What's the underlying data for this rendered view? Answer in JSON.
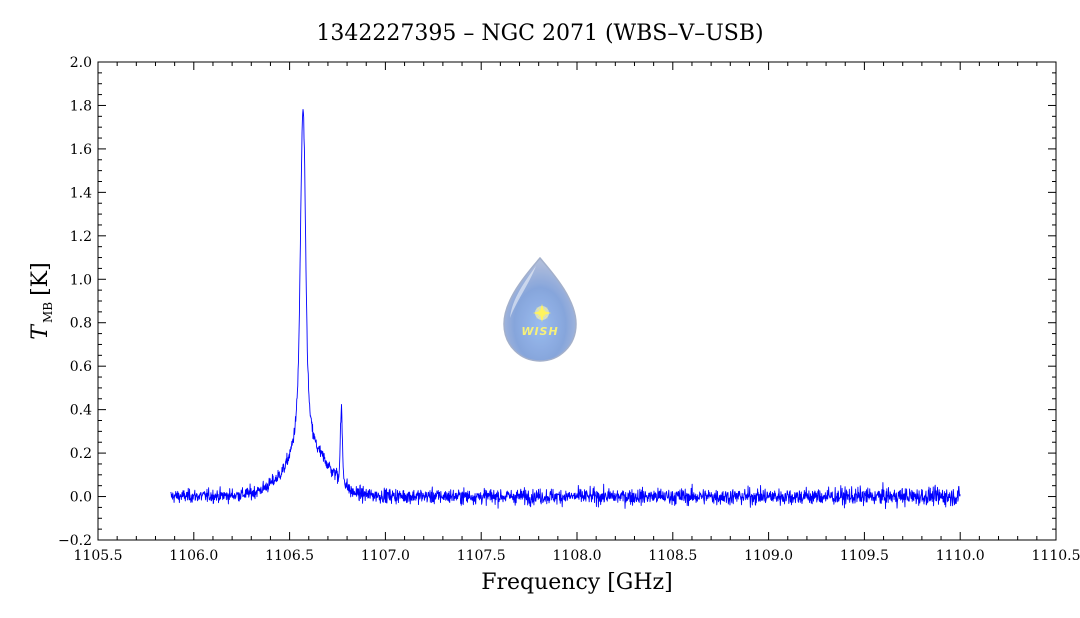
{
  "chart_data": {
    "type": "line",
    "title": "1342227395 – NGC 2071 (WBS–V–USB)",
    "xlabel": "Frequency [GHz]",
    "ylabel_main": "T",
    "ylabel_sub": "MB",
    "ylabel_unit": "[K]",
    "xlim": [
      1105.5,
      1110.5
    ],
    "ylim": [
      -0.2,
      2.0
    ],
    "x_ticks": [
      "1105.5",
      "1106.0",
      "1106.5",
      "1107.0",
      "1107.5",
      "1108.0",
      "1108.5",
      "1109.0",
      "1109.5",
      "1110.0",
      "1110.5"
    ],
    "y_ticks": [
      "−0.2",
      "0.0",
      "0.2",
      "0.4",
      "0.6",
      "0.8",
      "1.0",
      "1.2",
      "1.4",
      "1.6",
      "1.8",
      "2.0"
    ],
    "grid": false,
    "series": [
      {
        "color": "#0000ff",
        "x_range": [
          1105.88,
          1110.0
        ],
        "features": [
          {
            "center": 1106.57,
            "peak": 1.76
          },
          {
            "center": 1106.77,
            "peak": 0.41
          }
        ],
        "baseline": 0.0,
        "noise_rms": 0.025
      }
    ],
    "logo": {
      "text": "WISH",
      "icon": "wish-droplet-logo-icon"
    }
  }
}
